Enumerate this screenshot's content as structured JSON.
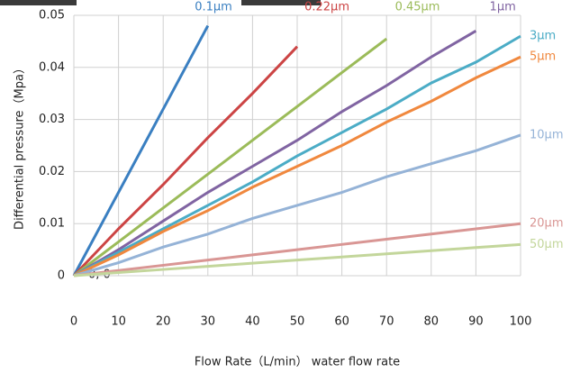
{
  "chart_data": {
    "type": "line",
    "x_label": "Flow Rate（L/min） water flow rate",
    "y_label": "Differential pressure（Mpa）",
    "annotation": "0, 0",
    "x": [
      0,
      10,
      20,
      30,
      40,
      50,
      60,
      70,
      80,
      90,
      100
    ],
    "xlim": [
      0,
      100
    ],
    "xticks": [
      0,
      10,
      20,
      30,
      40,
      50,
      60,
      70,
      80,
      90,
      100
    ],
    "ylim": [
      0,
      0.05
    ],
    "yticks": [
      0,
      0.01,
      0.02,
      0.03,
      0.04,
      0.05
    ],
    "grid": true,
    "series": [
      {
        "name": "0.1μm",
        "color": "#3a7fc1",
        "values": [
          0,
          0.016,
          0.032,
          0.048,
          null,
          null,
          null,
          null,
          null,
          null,
          null
        ]
      },
      {
        "name": "0.22μm",
        "color": "#cc4444",
        "values": [
          0,
          0.009,
          0.0175,
          0.0265,
          0.035,
          0.044,
          null,
          null,
          null,
          null,
          null
        ]
      },
      {
        "name": "0.45μm",
        "color": "#9bbb59",
        "values": [
          0,
          0.0065,
          0.013,
          0.0195,
          0.026,
          0.0325,
          0.039,
          0.0455,
          null,
          null,
          null
        ]
      },
      {
        "name": "1μm",
        "color": "#8064a2",
        "values": [
          0,
          0.005,
          0.0105,
          0.016,
          0.021,
          0.026,
          0.0315,
          0.0365,
          0.042,
          0.047,
          null
        ]
      },
      {
        "name": "3μm",
        "color": "#4bacc6",
        "values": [
          0,
          0.0045,
          0.009,
          0.0135,
          0.018,
          0.023,
          0.0275,
          0.032,
          0.037,
          0.041,
          0.046
        ]
      },
      {
        "name": "5μm",
        "color": "#f0883e",
        "values": [
          0,
          0.004,
          0.0085,
          0.0125,
          0.017,
          0.021,
          0.025,
          0.0295,
          0.0335,
          0.038,
          0.042
        ]
      },
      {
        "name": "10μm",
        "color": "#95b3d7",
        "values": [
          0,
          0.0025,
          0.0055,
          0.008,
          0.011,
          0.0135,
          0.016,
          0.019,
          0.0215,
          0.024,
          0.027
        ]
      },
      {
        "name": "20μm",
        "color": "#d99694",
        "values": [
          0,
          0.001,
          0.002,
          0.003,
          0.004,
          0.005,
          0.006,
          0.007,
          0.008,
          0.009,
          0.01
        ]
      },
      {
        "name": "50μm",
        "color": "#c3d69b",
        "values": [
          0,
          0.0006,
          0.0012,
          0.0018,
          0.0024,
          0.003,
          0.0036,
          0.0042,
          0.0048,
          0.0054,
          0.006
        ]
      }
    ]
  }
}
